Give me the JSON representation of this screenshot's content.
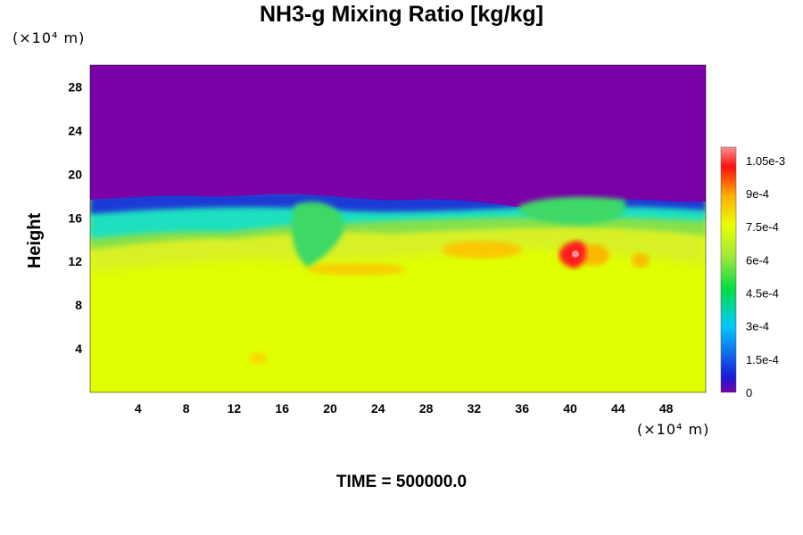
{
  "chart_data": {
    "type": "heatmap",
    "title": "NH3-g Mixing Ratio [kg/kg]",
    "ylabel": "Height",
    "x_unit": "(×10⁴ m)",
    "y_unit": "(×10⁴ m)",
    "xlim": [
      0,
      51.3
    ],
    "ylim": [
      0,
      30
    ],
    "x_ticks": [
      4,
      8,
      12,
      16,
      20,
      24,
      28,
      32,
      36,
      40,
      44,
      48
    ],
    "y_ticks": [
      4,
      8,
      12,
      16,
      20,
      24,
      28
    ],
    "colorbar": {
      "range": [
        0,
        0.00111
      ],
      "tick_labels": [
        "0",
        "1.5e-4",
        "3e-4",
        "4.5e-4",
        "6e-4",
        "7.5e-4",
        "9e-4",
        "1.05e-3"
      ],
      "tick_values": [
        0,
        0.00015,
        0.0003,
        0.00045,
        0.0006,
        0.00075,
        0.0009,
        0.00105
      ],
      "colors": [
        "#7a00a8",
        "#1a1ad6",
        "#00c8ff",
        "#00dd44",
        "#9ee63c",
        "#e6ff00",
        "#ffb000",
        "#ff1010",
        "#ff8080"
      ]
    },
    "field_summary": {
      "upper_region_value": 0,
      "lower_region_value": 0.00078,
      "transition_height_range": [
        11,
        18
      ]
    }
  },
  "footer": "TIME = 500000.0"
}
